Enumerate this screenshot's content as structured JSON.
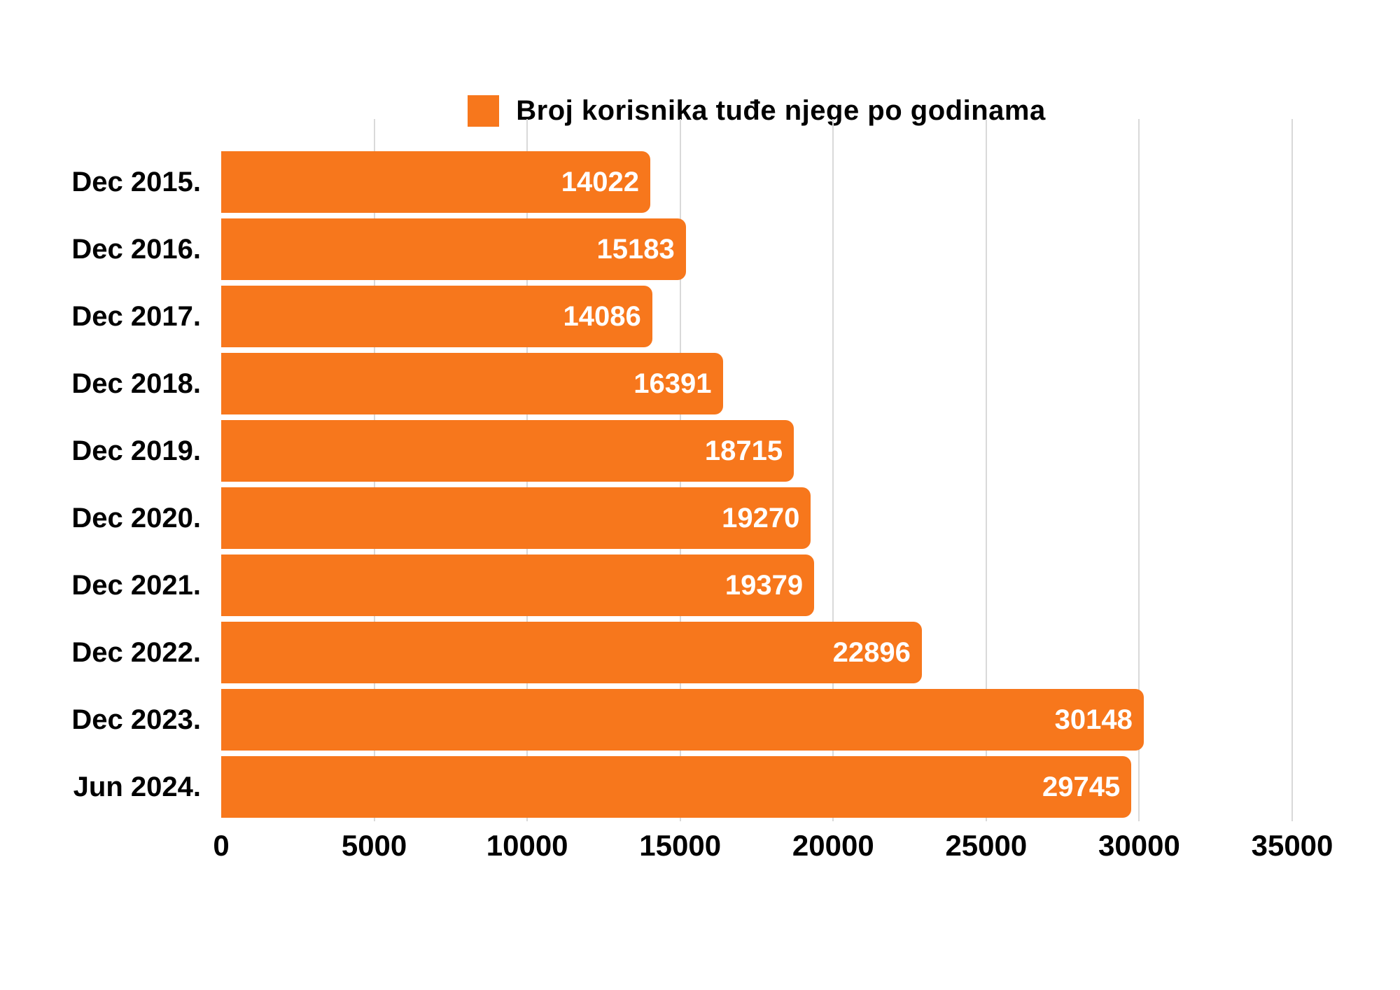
{
  "chart_data": {
    "type": "bar",
    "orientation": "horizontal",
    "legend": "Broj korisnika tuđe njege po godinama",
    "legend_position": "top-center",
    "categories": [
      "Dec 2015.",
      "Dec 2016.",
      "Dec 2017.",
      "Dec 2018.",
      "Dec 2019.",
      "Dec 2020.",
      "Dec 2021.",
      "Dec 2022.",
      "Dec 2023.",
      "Jun 2024."
    ],
    "values": [
      14022,
      15183,
      14086,
      16391,
      18715,
      19270,
      19379,
      22896,
      30148,
      29745
    ],
    "xlim": [
      0,
      35000
    ],
    "x_ticks": [
      0,
      5000,
      10000,
      15000,
      20000,
      25000,
      30000,
      35000
    ],
    "grid": "vertical-on",
    "value_labels": "inside-end",
    "colors": {
      "bar": "#F7771C",
      "value_label": "#FFFFFF",
      "axis_text": "#000000",
      "gridline": "#D9D9D9",
      "background": "#FFFFFF"
    }
  }
}
